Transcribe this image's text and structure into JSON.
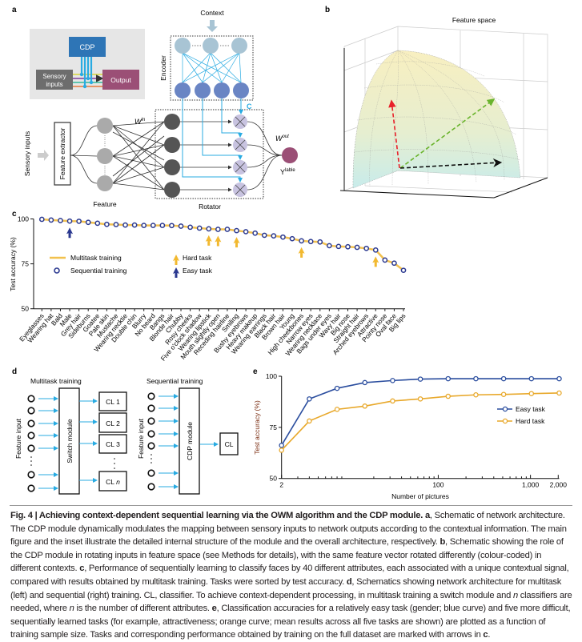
{
  "panel_labels": {
    "a": "a",
    "b": "b",
    "c": "c",
    "d": "d",
    "e": "e"
  },
  "panel_a": {
    "context": "Context",
    "encoder": "Encoder",
    "c_label": "C",
    "rotator": "Rotator",
    "feature": "Feature",
    "sensory_inputs": "Sensory inputs",
    "feature_extractor": "Feature extractor",
    "w_in": "W",
    "w_in_sup": "in",
    "w_out": "W",
    "w_out_sup": "out",
    "y_label": "Y",
    "y_label_sup": "lable",
    "inset": {
      "cdp": "CDP",
      "sensory_line1": "Sensory",
      "sensory_line2": "inputs",
      "output": "Output"
    },
    "colors": {
      "cdp": "#2e75b6",
      "output_node": "#9b4f76",
      "encoder_lines": "#29abe2",
      "sensory": "#6d6d6d"
    }
  },
  "panel_b": {
    "title": "Feature space",
    "vector_colors": [
      "#e8202a",
      "#6ab42d",
      "#111111"
    ]
  },
  "panel_d": {
    "multitask_title": "Multitask training",
    "sequential_title": "Sequential training",
    "feature_input": "Feature input",
    "switch_module": "Switch module",
    "cdp_module": "CDP module",
    "classifiers": [
      "CL 1",
      "CL 2",
      "CL 3"
    ],
    "classifier_n_prefix": "CL ",
    "classifier_n_var": "n",
    "cl": "CL"
  },
  "chart_data": [
    {
      "panel": "c",
      "type": "line",
      "ylabel": "Test accuracy (%)",
      "ylim": [
        50,
        100
      ],
      "yticks": [
        50,
        75,
        100
      ],
      "categories": [
        "Eyeglasses",
        "Wearing hat",
        "Bald",
        "Male",
        "Grey hair",
        "Sideburns",
        "Goatee",
        "Pale skin",
        "Mustache",
        "Wearing necktie",
        "Double chin",
        "Blurry",
        "No beard",
        "Bangs",
        "Blonde hair",
        "Chubby",
        "Rosy cheeks",
        "Five o'clock shadow",
        "Wearing lipstick",
        "Mouth slightly open",
        "Receding hairline",
        "Smiling",
        "Bushy eyebrows",
        "Heavy makeup",
        "Wearing earrings",
        "Black hair",
        "Brown hair",
        "Young",
        "High cheekbones",
        "Narrow eyes",
        "Wearing necklace",
        "Bags under eyes",
        "Wavy hair",
        "Big nose",
        "Straight hair",
        "Arched eyebrows",
        "Attractive",
        "Pointy nose",
        "Oval face",
        "Big lips"
      ],
      "series": [
        {
          "name": "Multitask training",
          "style": "line",
          "color": "#f2c14e",
          "values": [
            99.8,
            99.4,
            99.1,
            98.8,
            98.7,
            98.1,
            97.6,
            97.0,
            96.9,
            96.6,
            96.6,
            96.4,
            96.4,
            96.4,
            96.3,
            96.0,
            95.4,
            94.9,
            94.5,
            94.2,
            94.2,
            93.5,
            92.9,
            92.1,
            90.9,
            90.6,
            89.9,
            89.0,
            87.8,
            87.4,
            87.2,
            85.1,
            84.7,
            84.5,
            84.2,
            83.6,
            82.7,
            77.1,
            75.4,
            71.4
          ]
        },
        {
          "name": "Sequential training",
          "style": "circle",
          "color": "#2b3990",
          "values": [
            99.8,
            99.4,
            99.1,
            98.8,
            98.7,
            98.1,
            97.6,
            97.0,
            96.9,
            96.6,
            96.6,
            96.4,
            96.4,
            96.4,
            96.3,
            96.0,
            95.4,
            94.9,
            94.5,
            94.2,
            94.2,
            93.5,
            92.9,
            92.1,
            90.9,
            90.6,
            89.9,
            89.0,
            87.8,
            87.4,
            87.2,
            85.1,
            84.7,
            84.5,
            84.2,
            83.6,
            82.7,
            77.1,
            75.4,
            71.4
          ]
        }
      ],
      "markers": [
        {
          "name": "Hard task",
          "color": "#f2b930",
          "categories": [
            "Wearing lipstick",
            "Mouth slightly open",
            "Smiling",
            "High cheekbones",
            "Attractive"
          ]
        },
        {
          "name": "Easy task",
          "color": "#2b3990",
          "categories": [
            "Male"
          ]
        }
      ],
      "legend": "middle-left"
    },
    {
      "panel": "e",
      "type": "line",
      "xlabel": "Number of pictures",
      "ylabel": "Test accuracy (%)",
      "xscale": "log",
      "xlim": [
        2,
        2000
      ],
      "xticks": [
        {
          "v": 2,
          "label": "2"
        },
        {
          "v": 100,
          "label": "100"
        },
        {
          "v": 1000,
          "label": "1,000"
        },
        {
          "v": 2000,
          "label": "2,000"
        }
      ],
      "ylim": [
        50,
        100
      ],
      "yticks": [
        50,
        75,
        100
      ],
      "x": [
        2,
        4,
        8,
        16,
        32,
        64,
        128,
        256,
        512,
        1024,
        2048
      ],
      "series": [
        {
          "name": "Easy task",
          "color": "#2a4d9e",
          "values": [
            66.2,
            88.9,
            94.1,
            96.9,
            97.9,
            98.6,
            98.8,
            98.8,
            98.8,
            98.8,
            98.8
          ]
        },
        {
          "name": "Hard task",
          "color": "#e8a82a",
          "values": [
            63.8,
            78.1,
            83.8,
            85.4,
            87.9,
            88.9,
            90.2,
            90.9,
            91.1,
            91.5,
            91.8
          ]
        }
      ],
      "legend": "middle-right"
    }
  ],
  "caption": {
    "title": "Fig. 4 | Achieving context-dependent sequential learning via the OWM algorithm and the CDP module.",
    "a": "a",
    "t1": ", Schematic of network architecture. The CDP module dynamically modulates the mapping between sensory inputs to network outputs according to the contextual information. The main figure and the inset illustrate the detailed internal structure of the module and the overall architecture, respectively. ",
    "b": "b",
    "t2": ", Schematic showing the role of the CDP module in rotating inputs in feature space (see Methods for details), with the same feature vector rotated differently (colour-coded) in different contexts. ",
    "c": "c",
    "t3": ", Performance of sequentially learning to classify faces by 40 different attributes, each associated with a unique contextual signal, compared with results obtained by multitask training. Tasks were sorted by test accuracy. ",
    "d": "d",
    "t4": ", Schematics showing network architecture for multitask (left) and sequential (right) training. CL, classifier. To achieve context-dependent processing, in multitask training a switch module and ",
    "n1": "n",
    "t5": " classifiers are needed, where ",
    "n2": "n",
    "t6": " is the number of different attributes. ",
    "e": "e",
    "t7": ", Classification accuracies for a relatively easy task (gender; blue curve) and five more difficult, sequentially learned tasks (for example, attractiveness; orange curve; mean results across all five tasks are shown) are plotted as a function of training sample size. Tasks and corresponding performance obtained by training on the full dataset are marked with arrows in ",
    "c2": "c",
    "t8": "."
  }
}
